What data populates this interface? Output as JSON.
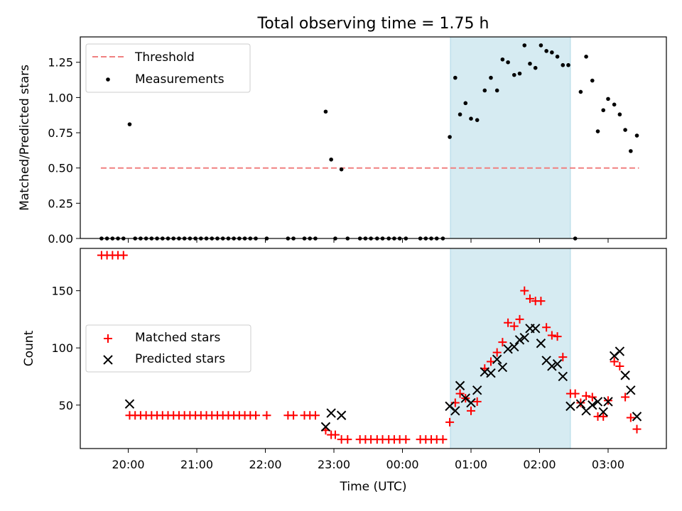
{
  "chart_data": {
    "title": "Total observing time = 1.75 h",
    "xlabel": "Time (UTC)",
    "x_unit": "hours UTC; values >= 24 are after midnight",
    "x_tick_labels": [
      {
        "t": 20,
        "label": "20:00"
      },
      {
        "t": 21,
        "label": "21:00"
      },
      {
        "t": 22,
        "label": "22:00"
      },
      {
        "t": 23,
        "label": "23:00"
      },
      {
        "t": 24,
        "label": "00:00"
      },
      {
        "t": 25,
        "label": "01:00"
      },
      {
        "t": 26,
        "label": "02:00"
      },
      {
        "t": 27,
        "label": "03:00"
      }
    ],
    "xlim": [
      19.3,
      27.85
    ],
    "highlight_span": {
      "start": 24.7,
      "end": 26.45,
      "color": "#add8e6"
    },
    "top": {
      "type": "scatter",
      "ylabel": "Matched/Predicted stars",
      "ylim": [
        0,
        1.43
      ],
      "yticks": [
        {
          "v": 0.0,
          "label": "0.00"
        },
        {
          "v": 0.25,
          "label": "0.25"
        },
        {
          "v": 0.5,
          "label": "0.50"
        },
        {
          "v": 0.75,
          "label": "0.75"
        },
        {
          "v": 1.0,
          "label": "1.00"
        },
        {
          "v": 1.25,
          "label": "1.25"
        }
      ],
      "legend_position": "upper left",
      "threshold": {
        "name": "Threshold",
        "value": 0.5,
        "x_start": 19.6,
        "x_end": 27.45,
        "color": "#f08080"
      },
      "measurements": {
        "name": "Measurements",
        "color": "#000000",
        "points": [
          [
            19.61,
            0
          ],
          [
            19.69,
            0
          ],
          [
            19.77,
            0
          ],
          [
            19.85,
            0
          ],
          [
            19.93,
            0
          ],
          [
            20.02,
            0.81
          ],
          [
            20.1,
            0
          ],
          [
            20.18,
            0
          ],
          [
            20.26,
            0
          ],
          [
            20.34,
            0
          ],
          [
            20.42,
            0
          ],
          [
            20.5,
            0
          ],
          [
            20.58,
            0
          ],
          [
            20.66,
            0
          ],
          [
            20.74,
            0
          ],
          [
            20.82,
            0
          ],
          [
            20.9,
            0
          ],
          [
            20.98,
            0
          ],
          [
            21.06,
            0
          ],
          [
            21.14,
            0
          ],
          [
            21.22,
            0
          ],
          [
            21.3,
            0
          ],
          [
            21.38,
            0
          ],
          [
            21.46,
            0
          ],
          [
            21.54,
            0
          ],
          [
            21.62,
            0
          ],
          [
            21.7,
            0
          ],
          [
            21.78,
            0
          ],
          [
            21.86,
            0
          ],
          [
            22.02,
            0
          ],
          [
            22.33,
            0
          ],
          [
            22.41,
            0
          ],
          [
            22.57,
            0
          ],
          [
            22.65,
            0
          ],
          [
            22.73,
            0
          ],
          [
            22.88,
            0.9
          ],
          [
            22.96,
            0.56
          ],
          [
            23.02,
            0
          ],
          [
            23.11,
            0.49
          ],
          [
            23.2,
            0
          ],
          [
            23.38,
            0
          ],
          [
            23.46,
            0
          ],
          [
            23.54,
            0
          ],
          [
            23.63,
            0
          ],
          [
            23.71,
            0
          ],
          [
            23.8,
            0
          ],
          [
            23.88,
            0
          ],
          [
            23.96,
            0
          ],
          [
            24.05,
            0
          ],
          [
            24.26,
            0
          ],
          [
            24.34,
            0
          ],
          [
            24.42,
            0
          ],
          [
            24.5,
            0
          ],
          [
            24.59,
            0
          ],
          [
            24.69,
            0.72
          ],
          [
            24.77,
            1.14
          ],
          [
            24.84,
            0.88
          ],
          [
            24.92,
            0.96
          ],
          [
            25.0,
            0.85
          ],
          [
            25.09,
            0.84
          ],
          [
            25.2,
            1.05
          ],
          [
            25.29,
            1.14
          ],
          [
            25.38,
            1.05
          ],
          [
            25.46,
            1.27
          ],
          [
            25.54,
            1.25
          ],
          [
            25.63,
            1.16
          ],
          [
            25.71,
            1.17
          ],
          [
            25.78,
            1.37
          ],
          [
            25.86,
            1.24
          ],
          [
            25.94,
            1.21
          ],
          [
            26.02,
            1.37
          ],
          [
            26.1,
            1.33
          ],
          [
            26.18,
            1.32
          ],
          [
            26.26,
            1.29
          ],
          [
            26.34,
            1.23
          ],
          [
            26.42,
            1.23
          ],
          [
            26.52,
            0
          ],
          [
            26.6,
            1.04
          ],
          [
            26.68,
            1.29
          ],
          [
            26.77,
            1.12
          ],
          [
            26.85,
            0.76
          ],
          [
            26.93,
            0.91
          ],
          [
            27.0,
            0.99
          ],
          [
            27.09,
            0.95
          ],
          [
            27.17,
            0.88
          ],
          [
            27.25,
            0.77
          ],
          [
            27.33,
            0.62
          ],
          [
            27.42,
            0.73
          ]
        ]
      }
    },
    "bottom": {
      "type": "scatter",
      "ylabel": "Count",
      "ylim": [
        12,
        187
      ],
      "yticks": [
        {
          "v": 50,
          "label": "50"
        },
        {
          "v": 100,
          "label": "100"
        },
        {
          "v": 150,
          "label": "150"
        }
      ],
      "legend_position": "center left",
      "series": [
        {
          "name": "Matched stars",
          "marker": "plus",
          "color": "#ff0000",
          "points": [
            [
              19.61,
              181
            ],
            [
              19.69,
              181
            ],
            [
              19.77,
              181
            ],
            [
              19.85,
              181
            ],
            [
              19.93,
              181
            ],
            [
              20.02,
              41
            ],
            [
              20.1,
              41
            ],
            [
              20.18,
              41
            ],
            [
              20.26,
              41
            ],
            [
              20.34,
              41
            ],
            [
              20.42,
              41
            ],
            [
              20.5,
              41
            ],
            [
              20.58,
              41
            ],
            [
              20.66,
              41
            ],
            [
              20.74,
              41
            ],
            [
              20.82,
              41
            ],
            [
              20.9,
              41
            ],
            [
              20.98,
              41
            ],
            [
              21.06,
              41
            ],
            [
              21.14,
              41
            ],
            [
              21.22,
              41
            ],
            [
              21.3,
              41
            ],
            [
              21.38,
              41
            ],
            [
              21.46,
              41
            ],
            [
              21.54,
              41
            ],
            [
              21.62,
              41
            ],
            [
              21.7,
              41
            ],
            [
              21.78,
              41
            ],
            [
              21.86,
              41
            ],
            [
              22.02,
              41
            ],
            [
              22.33,
              41
            ],
            [
              22.41,
              41
            ],
            [
              22.57,
              41
            ],
            [
              22.65,
              41
            ],
            [
              22.73,
              41
            ],
            [
              22.88,
              28
            ],
            [
              22.96,
              24
            ],
            [
              23.02,
              24
            ],
            [
              23.11,
              20
            ],
            [
              23.2,
              20
            ],
            [
              23.38,
              20
            ],
            [
              23.46,
              20
            ],
            [
              23.54,
              20
            ],
            [
              23.63,
              20
            ],
            [
              23.71,
              20
            ],
            [
              23.8,
              20
            ],
            [
              23.88,
              20
            ],
            [
              23.96,
              20
            ],
            [
              24.05,
              20
            ],
            [
              24.26,
              20
            ],
            [
              24.34,
              20
            ],
            [
              24.42,
              20
            ],
            [
              24.5,
              20
            ],
            [
              24.59,
              20
            ],
            [
              24.69,
              35
            ],
            [
              24.77,
              52
            ],
            [
              24.84,
              60
            ],
            [
              24.92,
              56
            ],
            [
              25.0,
              45
            ],
            [
              25.09,
              53
            ],
            [
              25.2,
              82
            ],
            [
              25.29,
              88
            ],
            [
              25.38,
              96
            ],
            [
              25.46,
              105
            ],
            [
              25.54,
              122
            ],
            [
              25.63,
              119
            ],
            [
              25.71,
              125
            ],
            [
              25.78,
              150
            ],
            [
              25.86,
              143
            ],
            [
              25.94,
              141
            ],
            [
              26.02,
              141
            ],
            [
              26.1,
              118
            ],
            [
              26.18,
              111
            ],
            [
              26.26,
              110
            ],
            [
              26.34,
              92
            ],
            [
              26.45,
              60
            ],
            [
              26.52,
              60
            ],
            [
              26.6,
              52
            ],
            [
              26.68,
              58
            ],
            [
              26.77,
              57
            ],
            [
              26.85,
              40
            ],
            [
              26.93,
              40
            ],
            [
              27.0,
              54
            ],
            [
              27.09,
              88
            ],
            [
              27.17,
              84
            ],
            [
              27.25,
              57
            ],
            [
              27.33,
              39
            ],
            [
              27.42,
              29
            ]
          ]
        },
        {
          "name": "Predicted stars",
          "marker": "x",
          "color": "#000000",
          "points": [
            [
              20.02,
              51
            ],
            [
              22.88,
              31
            ],
            [
              22.96,
              43
            ],
            [
              23.11,
              41
            ],
            [
              24.69,
              49
            ],
            [
              24.77,
              45
            ],
            [
              24.84,
              67
            ],
            [
              24.92,
              56
            ],
            [
              25.0,
              52
            ],
            [
              25.09,
              63
            ],
            [
              25.2,
              79
            ],
            [
              25.29,
              78
            ],
            [
              25.38,
              90
            ],
            [
              25.46,
              83
            ],
            [
              25.54,
              99
            ],
            [
              25.63,
              101
            ],
            [
              25.71,
              107
            ],
            [
              25.78,
              109
            ],
            [
              25.86,
              117
            ],
            [
              25.94,
              117
            ],
            [
              26.02,
              104
            ],
            [
              26.1,
              89
            ],
            [
              26.18,
              84
            ],
            [
              26.26,
              86
            ],
            [
              26.34,
              75
            ],
            [
              26.45,
              49
            ],
            [
              26.6,
              51
            ],
            [
              26.68,
              45
            ],
            [
              26.77,
              50
            ],
            [
              26.85,
              53
            ],
            [
              26.93,
              44
            ],
            [
              27.0,
              53
            ],
            [
              27.09,
              93
            ],
            [
              27.17,
              97
            ],
            [
              27.25,
              76
            ],
            [
              27.33,
              63
            ],
            [
              27.42,
              40
            ]
          ]
        }
      ]
    }
  }
}
